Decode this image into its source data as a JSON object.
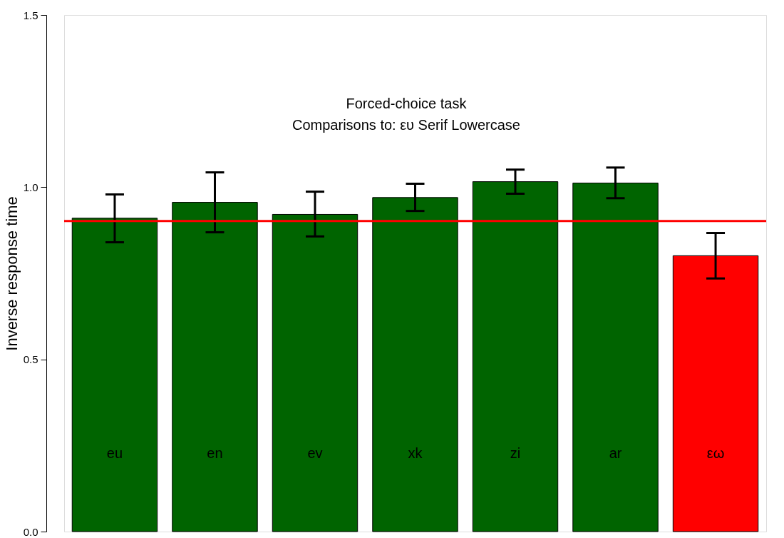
{
  "chart_data": {
    "type": "bar",
    "title": "Forced-choice task",
    "subtitle": "Comparisons to: ευ Serif Lowercase",
    "ylabel": "Inverse response time",
    "categories": [
      "eu",
      "en",
      "ev",
      "xk",
      "zi",
      "ar",
      "εω"
    ],
    "values": [
      0.91,
      0.956,
      0.921,
      0.97,
      1.016,
      1.012,
      0.801
    ],
    "colors": [
      "#006400",
      "#006400",
      "#006400",
      "#006400",
      "#006400",
      "#006400",
      "#ff0000"
    ],
    "errors": [
      [
        0.84,
        0.979
      ],
      [
        0.869,
        1.043
      ],
      [
        0.857,
        0.987
      ],
      [
        0.931,
        1.01
      ],
      [
        0.981,
        1.051
      ],
      [
        0.968,
        1.057
      ],
      [
        0.735,
        0.867
      ]
    ],
    "ylim": [
      0,
      1.5
    ],
    "yticks": [
      {
        "value": 0,
        "label": "0.0"
      },
      {
        "value": 0.5,
        "label": "0.5"
      },
      {
        "value": 1,
        "label": "1.0"
      },
      {
        "value": 1.5,
        "label": "1.5"
      }
    ],
    "ref_lines": [
      {
        "axis": "y",
        "value": 0.902,
        "color": "#ff0000"
      }
    ],
    "grid": false
  }
}
